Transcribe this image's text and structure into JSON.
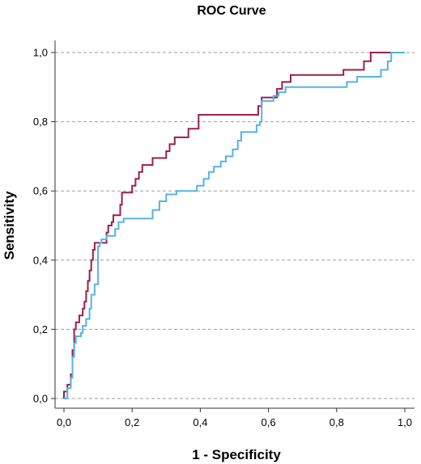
{
  "chart_data": {
    "type": "line",
    "title": "ROC Curve",
    "xlabel": "1 - Specificity",
    "ylabel": "Sensitivity",
    "xlim": [
      0,
      1
    ],
    "ylim": [
      0,
      1
    ],
    "xticks": [
      "0,0",
      "0,2",
      "0,4",
      "0,6",
      "0,8",
      "1,0"
    ],
    "yticks": [
      "0,0",
      "0,2",
      "0,4",
      "0,6",
      "0,8",
      "1,0"
    ],
    "grid": "horizontal-dashed",
    "series": [
      {
        "color": "#9b1f4f",
        "points": [
          [
            0.0,
            0.0
          ],
          [
            0.0,
            0.02
          ],
          [
            0.01,
            0.02
          ],
          [
            0.01,
            0.04
          ],
          [
            0.02,
            0.04
          ],
          [
            0.02,
            0.07
          ],
          [
            0.025,
            0.07
          ],
          [
            0.025,
            0.14
          ],
          [
            0.03,
            0.14
          ],
          [
            0.03,
            0.2
          ],
          [
            0.035,
            0.2
          ],
          [
            0.035,
            0.22
          ],
          [
            0.045,
            0.22
          ],
          [
            0.045,
            0.24
          ],
          [
            0.055,
            0.24
          ],
          [
            0.055,
            0.26
          ],
          [
            0.06,
            0.26
          ],
          [
            0.06,
            0.28
          ],
          [
            0.065,
            0.28
          ],
          [
            0.065,
            0.31
          ],
          [
            0.07,
            0.31
          ],
          [
            0.07,
            0.34
          ],
          [
            0.075,
            0.34
          ],
          [
            0.075,
            0.37
          ],
          [
            0.08,
            0.37
          ],
          [
            0.08,
            0.4
          ],
          [
            0.085,
            0.4
          ],
          [
            0.085,
            0.43
          ],
          [
            0.09,
            0.43
          ],
          [
            0.09,
            0.45
          ],
          [
            0.125,
            0.45
          ],
          [
            0.125,
            0.48
          ],
          [
            0.13,
            0.48
          ],
          [
            0.13,
            0.5
          ],
          [
            0.14,
            0.5
          ],
          [
            0.14,
            0.51
          ],
          [
            0.145,
            0.51
          ],
          [
            0.145,
            0.53
          ],
          [
            0.165,
            0.53
          ],
          [
            0.165,
            0.56
          ],
          [
            0.17,
            0.56
          ],
          [
            0.17,
            0.595
          ],
          [
            0.2,
            0.595
          ],
          [
            0.2,
            0.615
          ],
          [
            0.21,
            0.615
          ],
          [
            0.21,
            0.635
          ],
          [
            0.22,
            0.635
          ],
          [
            0.22,
            0.655
          ],
          [
            0.23,
            0.655
          ],
          [
            0.23,
            0.675
          ],
          [
            0.26,
            0.675
          ],
          [
            0.26,
            0.695
          ],
          [
            0.3,
            0.695
          ],
          [
            0.3,
            0.715
          ],
          [
            0.31,
            0.715
          ],
          [
            0.31,
            0.735
          ],
          [
            0.325,
            0.735
          ],
          [
            0.325,
            0.755
          ],
          [
            0.365,
            0.755
          ],
          [
            0.365,
            0.78
          ],
          [
            0.395,
            0.78
          ],
          [
            0.395,
            0.82
          ],
          [
            0.57,
            0.82
          ],
          [
            0.57,
            0.845
          ],
          [
            0.58,
            0.845
          ],
          [
            0.58,
            0.87
          ],
          [
            0.625,
            0.87
          ],
          [
            0.625,
            0.895
          ],
          [
            0.64,
            0.895
          ],
          [
            0.64,
            0.915
          ],
          [
            0.665,
            0.915
          ],
          [
            0.665,
            0.935
          ],
          [
            0.82,
            0.935
          ],
          [
            0.82,
            0.95
          ],
          [
            0.88,
            0.95
          ],
          [
            0.88,
            0.975
          ],
          [
            0.9,
            0.975
          ],
          [
            0.9,
            1.0
          ],
          [
            1.0,
            1.0
          ]
        ]
      },
      {
        "color": "#55b4e6",
        "points": [
          [
            0.0,
            0.0
          ],
          [
            0.01,
            0.0
          ],
          [
            0.01,
            0.03
          ],
          [
            0.02,
            0.03
          ],
          [
            0.02,
            0.06
          ],
          [
            0.025,
            0.06
          ],
          [
            0.025,
            0.12
          ],
          [
            0.03,
            0.12
          ],
          [
            0.03,
            0.16
          ],
          [
            0.035,
            0.16
          ],
          [
            0.035,
            0.18
          ],
          [
            0.05,
            0.18
          ],
          [
            0.05,
            0.19
          ],
          [
            0.055,
            0.19
          ],
          [
            0.055,
            0.21
          ],
          [
            0.065,
            0.21
          ],
          [
            0.065,
            0.23
          ],
          [
            0.075,
            0.23
          ],
          [
            0.075,
            0.26
          ],
          [
            0.08,
            0.26
          ],
          [
            0.08,
            0.3
          ],
          [
            0.09,
            0.3
          ],
          [
            0.09,
            0.33
          ],
          [
            0.1,
            0.33
          ],
          [
            0.1,
            0.44
          ],
          [
            0.105,
            0.44
          ],
          [
            0.105,
            0.45
          ],
          [
            0.11,
            0.45
          ],
          [
            0.11,
            0.46
          ],
          [
            0.125,
            0.46
          ],
          [
            0.125,
            0.47
          ],
          [
            0.15,
            0.47
          ],
          [
            0.15,
            0.49
          ],
          [
            0.16,
            0.49
          ],
          [
            0.16,
            0.51
          ],
          [
            0.175,
            0.51
          ],
          [
            0.175,
            0.52
          ],
          [
            0.26,
            0.52
          ],
          [
            0.26,
            0.545
          ],
          [
            0.28,
            0.545
          ],
          [
            0.28,
            0.57
          ],
          [
            0.3,
            0.57
          ],
          [
            0.3,
            0.59
          ],
          [
            0.33,
            0.59
          ],
          [
            0.33,
            0.6
          ],
          [
            0.39,
            0.6
          ],
          [
            0.39,
            0.615
          ],
          [
            0.41,
            0.615
          ],
          [
            0.41,
            0.635
          ],
          [
            0.425,
            0.635
          ],
          [
            0.425,
            0.655
          ],
          [
            0.44,
            0.655
          ],
          [
            0.44,
            0.67
          ],
          [
            0.46,
            0.67
          ],
          [
            0.46,
            0.685
          ],
          [
            0.475,
            0.685
          ],
          [
            0.475,
            0.7
          ],
          [
            0.495,
            0.7
          ],
          [
            0.495,
            0.72
          ],
          [
            0.51,
            0.72
          ],
          [
            0.51,
            0.745
          ],
          [
            0.52,
            0.745
          ],
          [
            0.52,
            0.77
          ],
          [
            0.565,
            0.77
          ],
          [
            0.565,
            0.79
          ],
          [
            0.575,
            0.79
          ],
          [
            0.575,
            0.8
          ],
          [
            0.58,
            0.8
          ],
          [
            0.58,
            0.86
          ],
          [
            0.615,
            0.86
          ],
          [
            0.615,
            0.875
          ],
          [
            0.63,
            0.875
          ],
          [
            0.63,
            0.885
          ],
          [
            0.65,
            0.885
          ],
          [
            0.65,
            0.9
          ],
          [
            0.83,
            0.9
          ],
          [
            0.83,
            0.915
          ],
          [
            0.86,
            0.915
          ],
          [
            0.86,
            0.93
          ],
          [
            0.93,
            0.93
          ],
          [
            0.93,
            0.95
          ],
          [
            0.95,
            0.95
          ],
          [
            0.95,
            0.975
          ],
          [
            0.96,
            0.975
          ],
          [
            0.96,
            1.0
          ],
          [
            1.0,
            1.0
          ]
        ]
      }
    ]
  }
}
